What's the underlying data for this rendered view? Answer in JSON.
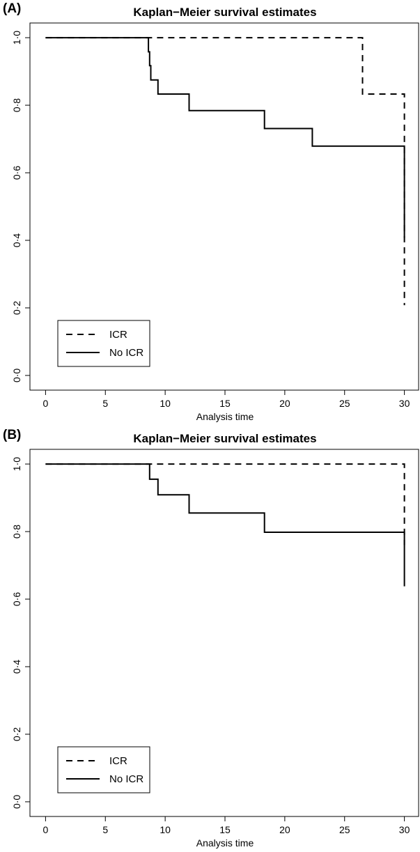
{
  "panels": [
    {
      "label": "(A)",
      "chart_data": {
        "type": "line",
        "title": "Kaplan−Meier survival estimates",
        "xlabel": "Analysis time",
        "ylabel": "",
        "xlim": [
          0,
          30
        ],
        "ylim": [
          0,
          1
        ],
        "xticks": [
          "0",
          "5",
          "10",
          "15",
          "20",
          "25",
          "30"
        ],
        "yticks": [
          "0·0",
          "0·2",
          "0·4",
          "0·6",
          "0·8",
          "1·0"
        ],
        "legend_position": "bottom-left",
        "series": [
          {
            "name": "ICR",
            "style": "dashed",
            "color": "#000000",
            "x": [
              0,
              26.5,
              26.5,
              30,
              30
            ],
            "y": [
              1.0,
              1.0,
              0.833,
              0.833,
              0.208
            ]
          },
          {
            "name": "No ICR",
            "style": "solid",
            "color": "#000000",
            "x": [
              0,
              8.6,
              8.6,
              8.7,
              8.7,
              8.8,
              8.8,
              9.4,
              9.4,
              12.0,
              12.0,
              18.3,
              18.3,
              22.3,
              22.3,
              30,
              30
            ],
            "y": [
              1.0,
              1.0,
              0.958,
              0.958,
              0.917,
              0.917,
              0.875,
              0.875,
              0.833,
              0.833,
              0.784,
              0.784,
              0.731,
              0.731,
              0.679,
              0.679,
              0.407
            ]
          }
        ]
      }
    },
    {
      "label": "(B)",
      "chart_data": {
        "type": "line",
        "title": "Kaplan−Meier survival estimates",
        "xlabel": "Analysis time",
        "ylabel": "",
        "xlim": [
          0,
          30
        ],
        "ylim": [
          0,
          1
        ],
        "xticks": [
          "0",
          "5",
          "10",
          "15",
          "20",
          "25",
          "30"
        ],
        "yticks": [
          "0·0",
          "0·2",
          "0·4",
          "0·6",
          "0·8",
          "1·0"
        ],
        "legend_position": "bottom-left",
        "series": [
          {
            "name": "ICR",
            "style": "dashed",
            "color": "#000000",
            "x": [
              0,
              30,
              30
            ],
            "y": [
              1.0,
              1.0,
              0.76
            ]
          },
          {
            "name": "No ICR",
            "style": "solid",
            "color": "#000000",
            "x": [
              0,
              8.7,
              8.7,
              9.4,
              9.4,
              12.0,
              12.0,
              18.3,
              18.3,
              30,
              30
            ],
            "y": [
              1.0,
              1.0,
              0.955,
              0.955,
              0.909,
              0.909,
              0.855,
              0.855,
              0.798,
              0.798,
              0.638
            ]
          }
        ]
      }
    }
  ]
}
